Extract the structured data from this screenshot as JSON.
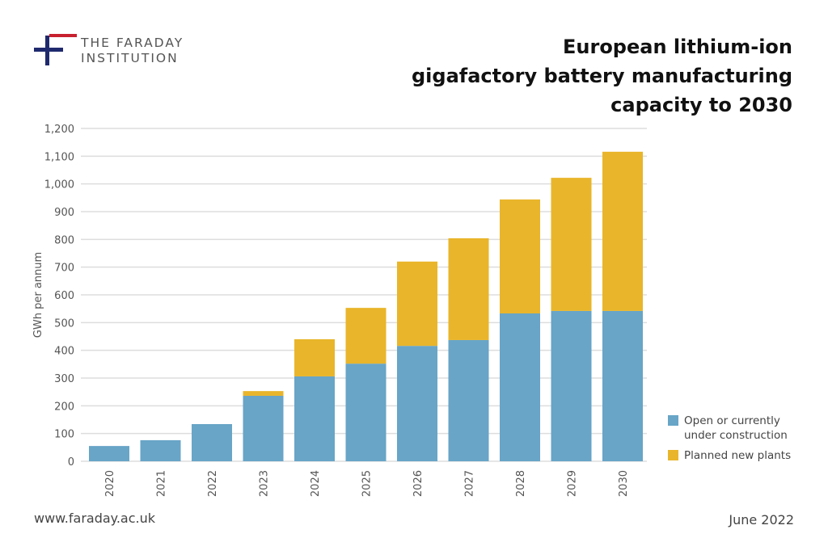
{
  "header": {
    "logo_text": [
      "THE FARADAY",
      "INSTITUTION"
    ],
    "title_lines": [
      "European lithium-ion",
      "gigafactory battery manufacturing",
      "capacity to 2030"
    ]
  },
  "footer": {
    "url": "www.faraday.ac.uk",
    "date": "June 2022"
  },
  "colors": {
    "open": "#68a5c7",
    "planned": "#e9b52a",
    "grid": "#dddddd",
    "logo_blue": "#1f2a6e",
    "logo_red": "#c8202f"
  },
  "chart_data": {
    "type": "bar",
    "stacked": true,
    "title": "European lithium-ion gigafactory battery manufacturing capacity to 2030",
    "xlabel": "",
    "ylabel": "GWh per annum",
    "ylim": [
      0,
      1200
    ],
    "grid": true,
    "legend": "right",
    "yticks": [
      "0",
      "100",
      "200",
      "300",
      "400",
      "500",
      "600",
      "700",
      "800",
      "900",
      "1,000",
      "1,100",
      "1,200"
    ],
    "categories": [
      "2020",
      "2021",
      "2022",
      "2023",
      "2024",
      "2025",
      "2026",
      "2027",
      "2028",
      "2029",
      "2030"
    ],
    "series": [
      {
        "name": "Open or currently under construction",
        "legend_lines": [
          "Open or currently",
          "under construction"
        ],
        "values": [
          55,
          76,
          134,
          236,
          306,
          352,
          416,
          437,
          533,
          542,
          542
        ]
      },
      {
        "name": "Planned new plants",
        "legend_lines": [
          "Planned new plants"
        ],
        "values": [
          0,
          0,
          0,
          17,
          134,
          201,
          304,
          367,
          411,
          480,
          574
        ]
      }
    ]
  }
}
